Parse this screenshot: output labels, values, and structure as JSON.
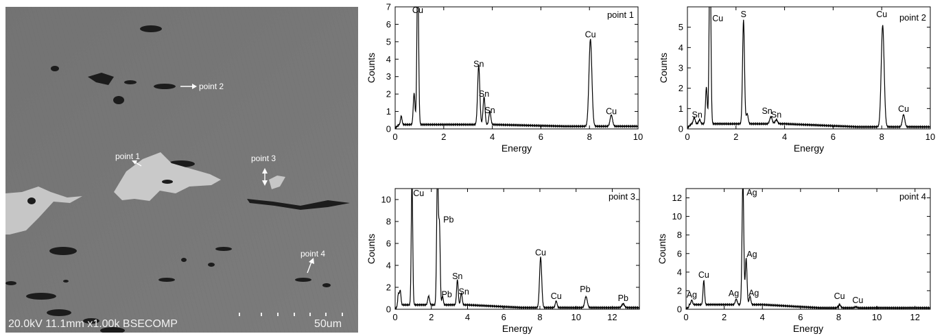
{
  "sem_image": {
    "info_text": "20.0kV 11.1mm x1.00k BSECOMP",
    "scale_label": "50um",
    "annotations": [
      {
        "label": "point 2"
      },
      {
        "label": "point 1"
      },
      {
        "label": "point 3"
      },
      {
        "label": "point 4"
      }
    ]
  },
  "chart_data": [
    {
      "type": "line",
      "title": "point 1",
      "xlabel": "Energy",
      "ylabel": "Counts",
      "xlim": [
        0,
        10
      ],
      "ylim": [
        0,
        7
      ],
      "xticks": [
        0,
        2,
        4,
        6,
        8,
        10
      ],
      "yticks": [
        0,
        1,
        2,
        3,
        4,
        5,
        6,
        7
      ],
      "base": 0.25,
      "tail": 0.15,
      "peaks": [
        {
          "x": 0.25,
          "y": 0.5,
          "w": 0.03
        },
        {
          "x": 0.78,
          "y": 1.8,
          "w": 0.035
        },
        {
          "x": 0.93,
          "y": 9.0,
          "w": 0.035
        },
        {
          "x": 3.44,
          "y": 3.4,
          "w": 0.045
        },
        {
          "x": 3.66,
          "y": 1.6,
          "w": 0.04
        },
        {
          "x": 3.9,
          "y": 0.75,
          "w": 0.04
        },
        {
          "x": 8.04,
          "y": 5.0,
          "w": 0.06
        },
        {
          "x": 8.9,
          "y": 0.65,
          "w": 0.05
        }
      ],
      "labels": [
        {
          "text": "Cu",
          "x": 0.93,
          "y": 6.65
        },
        {
          "text": "Sn",
          "x": 3.44,
          "y": 3.55
        },
        {
          "text": "Sn",
          "x": 3.66,
          "y": 1.85
        },
        {
          "text": "Sn",
          "x": 3.9,
          "y": 0.9
        },
        {
          "text": "Cu",
          "x": 8.04,
          "y": 5.25
        },
        {
          "text": "Cu",
          "x": 8.9,
          "y": 0.85
        }
      ]
    },
    {
      "type": "line",
      "title": "point 2",
      "xlabel": "Energy",
      "ylabel": "Counts",
      "xlim": [
        0,
        10
      ],
      "ylim": [
        0,
        6
      ],
      "xticks": [
        0,
        2,
        4,
        6,
        8,
        10
      ],
      "yticks": [
        0,
        1,
        2,
        3,
        4,
        5
      ],
      "base": 0.25,
      "tail": 0.1,
      "peaks": [
        {
          "x": 0.28,
          "y": 0.3,
          "w": 0.04
        },
        {
          "x": 0.5,
          "y": 0.2,
          "w": 0.04
        },
        {
          "x": 0.78,
          "y": 1.8,
          "w": 0.035
        },
        {
          "x": 0.93,
          "y": 9.0,
          "w": 0.035
        },
        {
          "x": 2.31,
          "y": 5.1,
          "w": 0.04
        },
        {
          "x": 2.46,
          "y": 0.5,
          "w": 0.04
        },
        {
          "x": 3.44,
          "y": 0.35,
          "w": 0.05
        },
        {
          "x": 3.66,
          "y": 0.2,
          "w": 0.05
        },
        {
          "x": 8.04,
          "y": 5.0,
          "w": 0.06
        },
        {
          "x": 8.9,
          "y": 0.6,
          "w": 0.05
        }
      ],
      "labels": [
        {
          "text": "Sn",
          "x": 0.4,
          "y": 0.55
        },
        {
          "text": "Cu",
          "x": 1.25,
          "y": 5.3
        },
        {
          "text": "S",
          "x": 2.31,
          "y": 5.5
        },
        {
          "text": "Sn",
          "x": 3.28,
          "y": 0.75
        },
        {
          "text": "Sn",
          "x": 3.66,
          "y": 0.55
        },
        {
          "text": "Cu",
          "x": 8.0,
          "y": 5.5
        },
        {
          "text": "Cu",
          "x": 8.9,
          "y": 0.85
        }
      ]
    },
    {
      "type": "line",
      "title": "point 3",
      "xlabel": "Energy",
      "ylabel": "Counts",
      "xlim": [
        0,
        13.5
      ],
      "ylim": [
        0,
        11
      ],
      "xticks": [
        0,
        2,
        4,
        6,
        8,
        10,
        12
      ],
      "yticks": [
        0,
        2,
        4,
        6,
        8,
        10
      ],
      "base": 0.4,
      "tail": 0.15,
      "peaks": [
        {
          "x": 0.18,
          "y": 1.0,
          "w": 0.04
        },
        {
          "x": 0.28,
          "y": 1.3,
          "w": 0.04
        },
        {
          "x": 0.93,
          "y": 11.5,
          "w": 0.04
        },
        {
          "x": 1.85,
          "y": 0.8,
          "w": 0.05
        },
        {
          "x": 2.34,
          "y": 12.5,
          "w": 0.045
        },
        {
          "x": 2.45,
          "y": 7.0,
          "w": 0.04
        },
        {
          "x": 2.62,
          "y": 0.8,
          "w": 0.04
        },
        {
          "x": 3.44,
          "y": 2.3,
          "w": 0.045
        },
        {
          "x": 3.66,
          "y": 1.1,
          "w": 0.045
        },
        {
          "x": 8.04,
          "y": 4.6,
          "w": 0.06
        },
        {
          "x": 8.9,
          "y": 0.6,
          "w": 0.05
        },
        {
          "x": 10.55,
          "y": 1.0,
          "w": 0.07
        },
        {
          "x": 12.6,
          "y": 0.35,
          "w": 0.07
        }
      ],
      "labels": [
        {
          "text": "Cu",
          "x": 1.3,
          "y": 10.3
        },
        {
          "text": "Pb",
          "x": 2.95,
          "y": 7.9
        },
        {
          "text": "Pb",
          "x": 2.85,
          "y": 1.1
        },
        {
          "text": "Sn",
          "x": 3.44,
          "y": 2.75
        },
        {
          "text": "Sn",
          "x": 3.8,
          "y": 1.35
        },
        {
          "text": "Cu",
          "x": 8.04,
          "y": 4.9
        },
        {
          "text": "Cu",
          "x": 8.9,
          "y": 0.95
        },
        {
          "text": "Pb",
          "x": 10.5,
          "y": 1.55
        },
        {
          "text": "Pb",
          "x": 12.6,
          "y": 0.75
        }
      ]
    },
    {
      "type": "line",
      "title": "point 4",
      "xlabel": "Energy",
      "ylabel": "Counts",
      "xlim": [
        0,
        12.8
      ],
      "ylim": [
        0,
        13
      ],
      "xticks": [
        0,
        2,
        4,
        6,
        8,
        10,
        12
      ],
      "yticks": [
        0,
        2,
        4,
        6,
        8,
        10,
        12
      ],
      "base": 0.5,
      "tail": 0.15,
      "peaks": [
        {
          "x": 0.3,
          "y": 0.5,
          "w": 0.04
        },
        {
          "x": 0.93,
          "y": 2.6,
          "w": 0.04
        },
        {
          "x": 2.63,
          "y": 0.6,
          "w": 0.05
        },
        {
          "x": 2.98,
          "y": 13.5,
          "w": 0.045
        },
        {
          "x": 3.15,
          "y": 5.0,
          "w": 0.045
        },
        {
          "x": 3.35,
          "y": 0.9,
          "w": 0.045
        },
        {
          "x": 8.04,
          "y": 0.35,
          "w": 0.06
        },
        {
          "x": 8.9,
          "y": 0.1,
          "w": 0.06
        }
      ],
      "labels": [
        {
          "text": "Ag",
          "x": 0.3,
          "y": 1.25
        },
        {
          "text": "Cu",
          "x": 0.93,
          "y": 3.4
        },
        {
          "text": "Ag",
          "x": 2.5,
          "y": 1.4
        },
        {
          "text": "Ag",
          "x": 3.45,
          "y": 12.25
        },
        {
          "text": "Ag",
          "x": 3.45,
          "y": 5.6
        },
        {
          "text": "Ag",
          "x": 3.55,
          "y": 1.45
        },
        {
          "text": "Cu",
          "x": 8.04,
          "y": 1.1
        },
        {
          "text": "Cu",
          "x": 9.0,
          "y": 0.65
        }
      ]
    }
  ]
}
